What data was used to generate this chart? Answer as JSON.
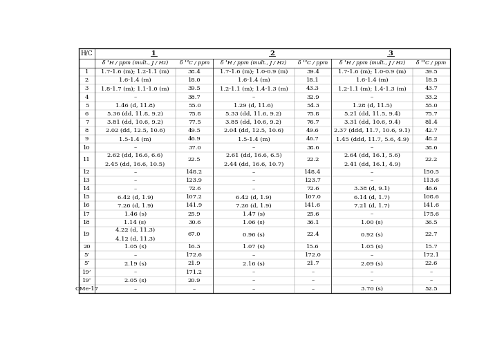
{
  "col_headers_sub": [
    "δ ¹H / ppm (mult., J / Hz)",
    "δ ¹³C / ppm",
    "δ ¹H / ppm (mult., J / Hz)",
    "δ ¹³C / ppm",
    "δ ¹H / ppm (mult., J / Hz)",
    "δ ¹³C / ppm"
  ],
  "rows": [
    {
      "hc": "1",
      "d1h": "1.7-1.6 (m); 1.2-1.1 (m)",
      "d1c": "38.4",
      "d2h": "1.7-1.6 (m); 1.0-0.9 (m)",
      "d2c": "39.4",
      "d3h": "1.7-1.6 (m); 1.0-0.9 (m)",
      "d3c": "39.5",
      "double": false
    },
    {
      "hc": "2",
      "d1h": "1.6-1.4 (m)",
      "d1c": "18.0",
      "d2h": "1.6-1.4 (m)",
      "d2c": "18.1",
      "d3h": "1.6-1.4 (m)",
      "d3c": "18.5",
      "double": false
    },
    {
      "hc": "3",
      "d1h": "1.8-1.7 (m); 1.1-1.0 (m)",
      "d1c": "39.5",
      "d2h": "1.2-1.1 (m); 1.4-1.3 (m)",
      "d2c": "43.3",
      "d3h": "1.2-1.1 (m); 1.4-1.3 (m)",
      "d3c": "43.7",
      "double": false
    },
    {
      "hc": "4",
      "d1h": "–",
      "d1c": "38.7",
      "d2h": "–",
      "d2c": "32.9",
      "d3h": "–",
      "d3c": "33.2",
      "double": false
    },
    {
      "hc": "5",
      "d1h": "1.46 (d, 11.8)",
      "d1c": "55.0",
      "d2h": "1.29 (d, 11.6)",
      "d2c": "54.3",
      "d3h": "1.28 (d, 11.5)",
      "d3c": "55.0",
      "double": false
    },
    {
      "hc": "6",
      "d1h": "5.36 (dd, 11.8, 9.2)",
      "d1c": "75.8",
      "d2h": "5.33 (dd, 11.6, 9.2)",
      "d2c": "75.8",
      "d3h": "5.21 (dd, 11.5, 9.4)",
      "d3c": "75.7",
      "double": false
    },
    {
      "hc": "7",
      "d1h": "3.81 (dd, 10.6, 9.2)",
      "d1c": "77.5",
      "d2h": "3.85 (dd, 10.6, 9.2)",
      "d2c": "76.7",
      "d3h": "3.31 (dd, 10.6, 9.4)",
      "d3c": "81.4",
      "double": false
    },
    {
      "hc": "8",
      "d1h": "2.02 (dd, 12.5, 10.6)",
      "d1c": "49.5",
      "d2h": "2.04 (dd, 12.5, 10.6)",
      "d2c": "49.6",
      "d3h": "2.37 (ddd, 11.7, 10.6, 9.1)",
      "d3c": "42.7",
      "double": false
    },
    {
      "hc": "9",
      "d1h": "1.5-1.4 (m)",
      "d1c": "46.9",
      "d2h": "1.5-1.4 (m)",
      "d2c": "46.7",
      "d3h": "1.45 (ddd, 11.7, 5.6, 4.9)",
      "d3c": "48.2",
      "double": false
    },
    {
      "hc": "10",
      "d1h": "–",
      "d1c": "37.0",
      "d2h": "–",
      "d2c": "38.6",
      "d3h": "–",
      "d3c": "38.6",
      "double": false
    },
    {
      "hc": "11",
      "d1h": "2.62 (dd, 16.6, 6.6)\n2.45 (dd, 16.6, 10.5)",
      "d1c": "22.5",
      "d2h": "2.61 (dd, 16.6, 6.5)\n2.44 (dd, 16.6, 10.7)",
      "d2c": "22.2",
      "d3h": "2.64 (dd, 16.1, 5.6)\n2.41 (dd, 16.1, 4.9)",
      "d3c": "22.2",
      "double": true
    },
    {
      "hc": "12",
      "d1h": "–",
      "d1c": "148.2",
      "d2h": "–",
      "d2c": "148.4",
      "d3h": "–",
      "d3c": "150.5",
      "double": false
    },
    {
      "hc": "13",
      "d1h": "–",
      "d1c": "123.9",
      "d2h": "–",
      "d2c": "123.7",
      "d3h": "–",
      "d3c": "113.6",
      "double": false
    },
    {
      "hc": "14",
      "d1h": "–",
      "d1c": "72.6",
      "d2h": "–",
      "d2c": "72.6",
      "d3h": "3.38 (d, 9.1)",
      "d3c": "46.6",
      "double": false
    },
    {
      "hc": "15",
      "d1h": "6.42 (d, 1.9)",
      "d1c": "107.2",
      "d2h": "6.42 (d, 1.9)",
      "d2c": "107.0",
      "d3h": "6.14 (d, 1.7)",
      "d3c": "108.6",
      "double": false
    },
    {
      "hc": "16",
      "d1h": "7.26 (d, 1.9)",
      "d1c": "141.9",
      "d2h": "7.26 (d, 1.9)",
      "d2c": "141.6",
      "d3h": "7.21 (d, 1.7)",
      "d3c": "141.6",
      "double": false
    },
    {
      "hc": "17",
      "d1h": "1.46 (s)",
      "d1c": "25.9",
      "d2h": "1.47 (s)",
      "d2c": "25.6",
      "d3h": "–",
      "d3c": "175.6",
      "double": false
    },
    {
      "hc": "18",
      "d1h": "1.14 (s)",
      "d1c": "30.6",
      "d2h": "1.06 (s)",
      "d2c": "36.1",
      "d3h": "1.00 (s)",
      "d3c": "36.5",
      "double": false
    },
    {
      "hc": "19",
      "d1h": "4.22 (d, 11.3)\n4.12 (d, 11.3)",
      "d1c": "67.0",
      "d2h": "0.96 (s)",
      "d2c": "22.4",
      "d3h": "0.92 (s)",
      "d3c": "22.7",
      "double": true
    },
    {
      "hc": "20",
      "d1h": "1.05 (s)",
      "d1c": "16.3",
      "d2h": "1.07 (s)",
      "d2c": "15.6",
      "d3h": "1.05 (s)",
      "d3c": "15.7",
      "double": false
    },
    {
      "hc": "5’",
      "d1h": "–",
      "d1c": "172.6",
      "d2h": "–",
      "d2c": "172.0",
      "d3h": "–",
      "d3c": "172.1",
      "double": false
    },
    {
      "hc": "5″",
      "d1h": "2.19 (s)",
      "d1c": "21.9",
      "d2h": "2.16 (s)",
      "d2c": "21.7",
      "d3h": "2.09 (s)",
      "d3c": "22.6",
      "double": false
    },
    {
      "hc": "19’",
      "d1h": "–",
      "d1c": "171.2",
      "d2h": "–",
      "d2c": "–",
      "d3h": "–",
      "d3c": "–",
      "double": false
    },
    {
      "hc": "19″",
      "d1h": "2.05 (s)",
      "d1c": "20.9",
      "d2h": "–",
      "d2c": "–",
      "d3h": "–",
      "d3c": "–",
      "double": false
    },
    {
      "hc": "OMe-17",
      "d1h": "–",
      "d1c": "–",
      "d2h": "–",
      "d2c": "–",
      "d3h": "3.70 (s)",
      "d3c": "52.5",
      "double": false
    }
  ],
  "bg_color": "#ffffff",
  "text_color": "#000000",
  "font_size": 6.0,
  "header_font_size": 6.5
}
